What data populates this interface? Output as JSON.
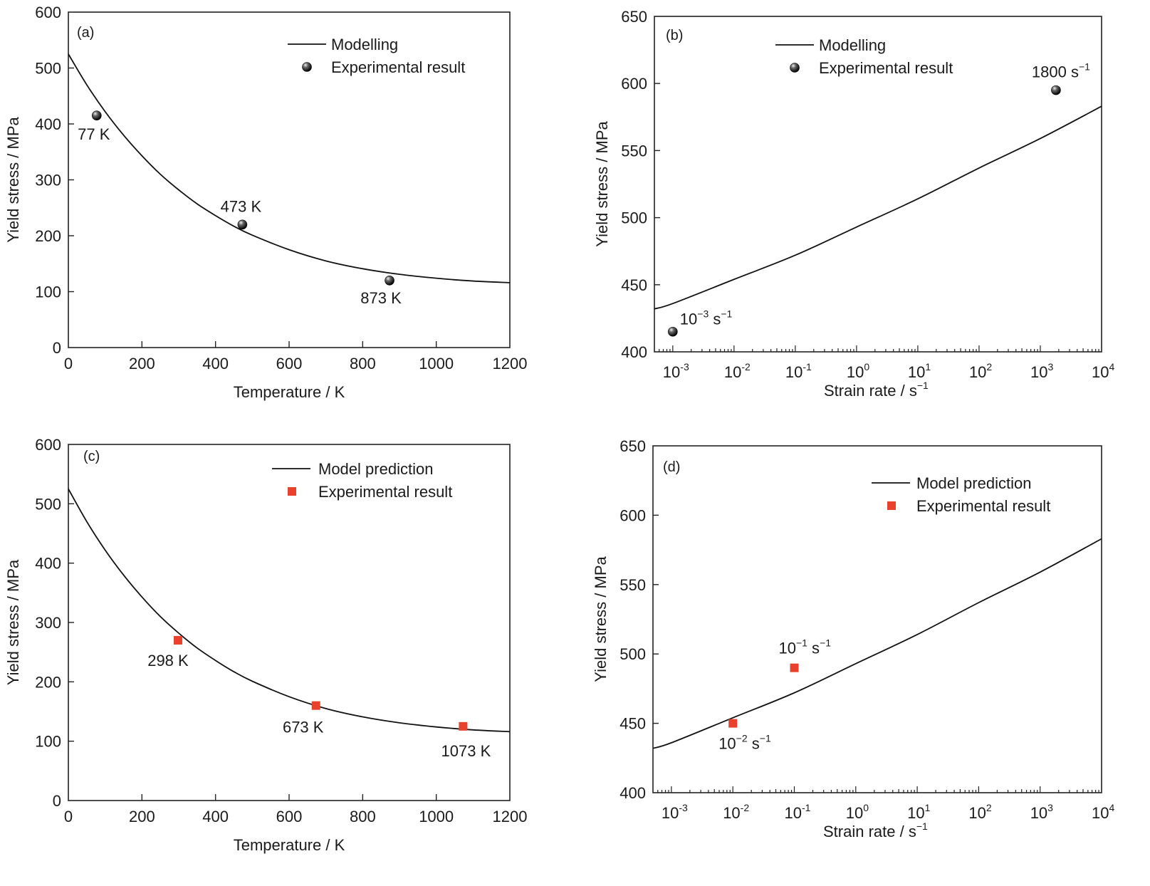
{
  "chart_data": [
    {
      "panel": "a",
      "type": "line",
      "panel_label": "(a)",
      "xlabel": "Temperature / K",
      "ylabel": "Yield stress / MPa",
      "xscale": "linear",
      "xlim": [
        0,
        1200
      ],
      "ylim": [
        0,
        600
      ],
      "xticks": [
        0,
        200,
        400,
        600,
        800,
        1000,
        1200
      ],
      "yticks": [
        0,
        100,
        200,
        300,
        400,
        500,
        600
      ],
      "legend": {
        "placement": "top-right",
        "line_label": "Modelling",
        "marker_label": "Experimental result",
        "marker": "sphere"
      },
      "series": [
        {
          "name": "Modelling",
          "kind": "line",
          "x": [
            0,
            50,
            100,
            150,
            200,
            250,
            300,
            350,
            400,
            450,
            500,
            600,
            700,
            800,
            900,
            1000,
            1100,
            1200
          ],
          "y": [
            525,
            470,
            422,
            380,
            343,
            310,
            282,
            257,
            236,
            217,
            201,
            175,
            155,
            141,
            131,
            124,
            119,
            116
          ]
        },
        {
          "name": "Experimental result",
          "kind": "scatter",
          "x": [
            77,
            473,
            873
          ],
          "y": [
            415,
            220,
            120
          ],
          "labels": [
            "77 K",
            "473 K",
            "873 K"
          ]
        }
      ]
    },
    {
      "panel": "b",
      "type": "line",
      "panel_label": "(b)",
      "xlabel": "Strain rate / s",
      "xlabel_sup": "−1",
      "ylabel": "Yield stress / MPa",
      "xscale": "log",
      "xlim_log10": [
        -3.3,
        4
      ],
      "ylim": [
        400,
        650
      ],
      "xticks_log10": [
        -3,
        -2,
        -1,
        0,
        1,
        2,
        3,
        4
      ],
      "yticks": [
        400,
        450,
        500,
        550,
        600,
        650
      ],
      "legend": {
        "placement": "top-center",
        "line_label": "Modelling",
        "marker_label": "Experimental result",
        "marker": "sphere"
      },
      "series": [
        {
          "name": "Modelling",
          "kind": "line",
          "x_log10": [
            -3.3,
            -3,
            -2,
            -1,
            0,
            1,
            2,
            3,
            4
          ],
          "y": [
            432,
            436,
            454,
            472,
            493,
            514,
            537,
            559,
            583
          ]
        },
        {
          "name": "Experimental result",
          "kind": "scatter",
          "x_log10": [
            -3,
            3.255
          ],
          "y": [
            415,
            595
          ],
          "labels": [
            {
              "base": "10",
              "sup": "−3",
              "unit": " s",
              "unit_sup": "−1"
            },
            {
              "base": "1800",
              "sup": "",
              "unit": " s",
              "unit_sup": "−1"
            }
          ]
        }
      ]
    },
    {
      "panel": "c",
      "type": "line",
      "panel_label": "(c)",
      "xlabel": "Temperature / K",
      "ylabel": "Yield stress / MPa",
      "xscale": "linear",
      "xlim": [
        0,
        1200
      ],
      "ylim": [
        0,
        600
      ],
      "xticks": [
        0,
        200,
        400,
        600,
        800,
        1000,
        1200
      ],
      "yticks": [
        0,
        100,
        200,
        300,
        400,
        500,
        600
      ],
      "legend": {
        "placement": "top-right",
        "line_label": "Model prediction",
        "marker_label": "Experimental result",
        "marker": "square",
        "marker_color": "#e8412c"
      },
      "series": [
        {
          "name": "Model prediction",
          "kind": "line",
          "x": [
            0,
            50,
            100,
            150,
            200,
            250,
            300,
            350,
            400,
            450,
            500,
            600,
            700,
            800,
            900,
            1000,
            1100,
            1200
          ],
          "y": [
            525,
            470,
            422,
            380,
            343,
            310,
            282,
            257,
            236,
            217,
            201,
            175,
            155,
            141,
            131,
            124,
            119,
            116
          ]
        },
        {
          "name": "Experimental result",
          "kind": "scatter",
          "x": [
            298,
            673,
            1073
          ],
          "y": [
            270,
            160,
            125
          ],
          "labels": [
            "298 K",
            "673 K",
            "1073 K"
          ]
        }
      ]
    },
    {
      "panel": "d",
      "type": "line",
      "panel_label": "(d)",
      "xlabel": "Strain rate / s",
      "xlabel_sup": "−1",
      "ylabel": "Yield stress / MPa",
      "xscale": "log",
      "xlim_log10": [
        -3.3,
        4
      ],
      "ylim": [
        400,
        650
      ],
      "xticks_log10": [
        -3,
        -2,
        -1,
        0,
        1,
        2,
        3,
        4
      ],
      "yticks": [
        400,
        450,
        500,
        550,
        600,
        650
      ],
      "legend": {
        "placement": "top-right",
        "line_label": "Model prediction",
        "marker_label": "Experimental result",
        "marker": "square",
        "marker_color": "#e8412c"
      },
      "series": [
        {
          "name": "Model prediction",
          "kind": "line",
          "x_log10": [
            -3.3,
            -3,
            -2,
            -1,
            0,
            1,
            2,
            3,
            4
          ],
          "y": [
            432,
            436,
            454,
            472,
            493,
            514,
            537,
            559,
            583
          ]
        },
        {
          "name": "Experimental result",
          "kind": "scatter",
          "x_log10": [
            -2,
            -1
          ],
          "y": [
            450,
            490
          ],
          "labels": [
            {
              "base": "10",
              "sup": "−2",
              "unit": " s",
              "unit_sup": "−1"
            },
            {
              "base": "10",
              "sup": "−1",
              "unit": " s",
              "unit_sup": "−1"
            }
          ]
        }
      ]
    }
  ],
  "colors": {
    "line": "#111111",
    "sphere": "#1a1a1a",
    "square": "#e8412c",
    "axis": "#222222"
  }
}
